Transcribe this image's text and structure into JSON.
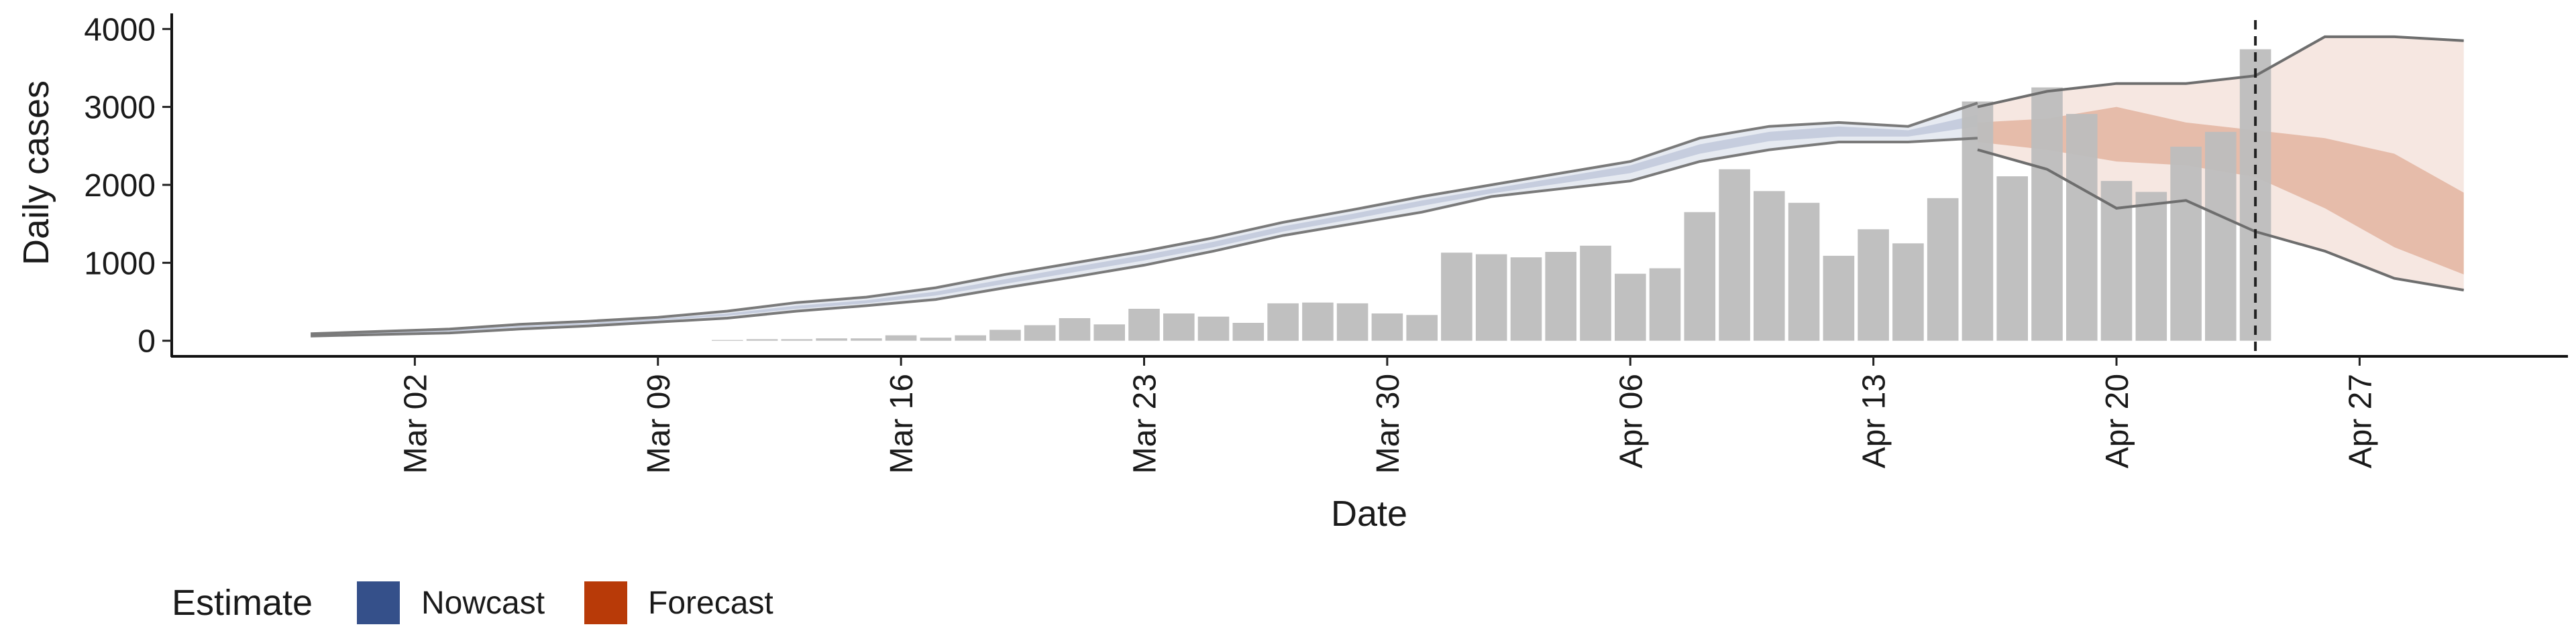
{
  "chart_data": {
    "type": "bar",
    "xlabel": "Date",
    "ylabel": "Daily cases",
    "x_tick_labels": [
      "Mar 02",
      "Mar 09",
      "Mar 16",
      "Mar 23",
      "Mar 30",
      "Apr 06",
      "Apr 13",
      "Apr 20",
      "Apr 27"
    ],
    "x_tick_dates": [
      "2020-03-02",
      "2020-03-09",
      "2020-03-16",
      "2020-03-23",
      "2020-03-30",
      "2020-04-06",
      "2020-04-13",
      "2020-04-20",
      "2020-04-27"
    ],
    "y_ticks": [
      0,
      1000,
      2000,
      3000,
      4000
    ],
    "ylim": [
      -200,
      4200
    ],
    "xlim": [
      "2020-02-24",
      "2020-05-03"
    ],
    "forecast_date": "2020-04-24",
    "grid": false,
    "legend": {
      "title": "Estimate",
      "position": "bottom-left",
      "items": [
        {
          "label": "Nowcast",
          "color": "#35508a"
        },
        {
          "label": "Forecast",
          "color": "#b83a08"
        }
      ]
    },
    "reported_cases": {
      "color": "#bdbdbd",
      "dates": [
        "2020-03-11",
        "2020-03-12",
        "2020-03-13",
        "2020-03-14",
        "2020-03-15",
        "2020-03-16",
        "2020-03-17",
        "2020-03-18",
        "2020-03-19",
        "2020-03-20",
        "2020-03-21",
        "2020-03-22",
        "2020-03-23",
        "2020-03-24",
        "2020-03-25",
        "2020-03-26",
        "2020-03-27",
        "2020-03-28",
        "2020-03-29",
        "2020-03-30",
        "2020-03-31",
        "2020-04-01",
        "2020-04-02",
        "2020-04-03",
        "2020-04-04",
        "2020-04-05",
        "2020-04-06",
        "2020-04-07",
        "2020-04-08",
        "2020-04-09",
        "2020-04-10",
        "2020-04-11",
        "2020-04-12",
        "2020-04-13",
        "2020-04-14",
        "2020-04-15",
        "2020-04-16",
        "2020-04-17",
        "2020-04-18",
        "2020-04-19",
        "2020-04-20",
        "2020-04-21",
        "2020-04-22",
        "2020-04-23",
        "2020-04-24"
      ],
      "values": [
        10,
        20,
        20,
        30,
        30,
        70,
        40,
        70,
        140,
        200,
        290,
        210,
        410,
        350,
        310,
        230,
        480,
        490,
        480,
        350,
        330,
        1130,
        1110,
        1070,
        1140,
        1220,
        860,
        930,
        1650,
        2200,
        1920,
        1770,
        1090,
        1430,
        1250,
        1830,
        3070,
        2110,
        3250,
        2910,
        2050,
        1910,
        2490,
        2680,
        3740
      ]
    },
    "nowcast": {
      "dates": [
        "2020-02-28",
        "2020-03-01",
        "2020-03-03",
        "2020-03-05",
        "2020-03-07",
        "2020-03-09",
        "2020-03-11",
        "2020-03-13",
        "2020-03-15",
        "2020-03-17",
        "2020-03-19",
        "2020-03-21",
        "2020-03-23",
        "2020-03-25",
        "2020-03-27",
        "2020-03-29",
        "2020-03-31",
        "2020-04-02",
        "2020-04-04",
        "2020-04-06",
        "2020-04-08",
        "2020-04-10",
        "2020-04-12",
        "2020-04-14",
        "2020-04-16"
      ],
      "upper_90": [
        90,
        120,
        150,
        210,
        250,
        300,
        380,
        490,
        560,
        680,
        850,
        1000,
        1150,
        1320,
        1520,
        1680,
        1850,
        2000,
        2150,
        2300,
        2600,
        2750,
        2800,
        2750,
        3050
      ],
      "upper_50": [
        80,
        105,
        135,
        190,
        230,
        280,
        350,
        450,
        520,
        630,
        790,
        950,
        1100,
        1270,
        1470,
        1630,
        1800,
        1950,
        2100,
        2250,
        2520,
        2680,
        2750,
        2700,
        2900
      ],
      "lower_50": [
        70,
        95,
        120,
        170,
        210,
        260,
        320,
        410,
        480,
        580,
        730,
        880,
        1030,
        1200,
        1400,
        1560,
        1730,
        1890,
        2020,
        2150,
        2400,
        2560,
        2620,
        2620,
        2750
      ],
      "lower_90": [
        60,
        80,
        100,
        150,
        190,
        240,
        290,
        380,
        450,
        530,
        680,
        820,
        970,
        1150,
        1350,
        1500,
        1650,
        1850,
        1950,
        2050,
        2300,
        2450,
        2550,
        2550,
        2600
      ]
    },
    "forecast": {
      "dates": [
        "2020-04-16",
        "2020-04-18",
        "2020-04-20",
        "2020-04-22",
        "2020-04-24",
        "2020-04-26",
        "2020-04-28",
        "2020-04-30"
      ],
      "upper_90": [
        3000,
        3200,
        3300,
        3300,
        3400,
        3900,
        3900,
        3850
      ],
      "upper_50": [
        2800,
        2850,
        3000,
        2800,
        2700,
        2600,
        2400,
        1900
      ],
      "lower_50": [
        2550,
        2450,
        2300,
        2250,
        2100,
        1700,
        1200,
        850
      ],
      "lower_90": [
        2450,
        2200,
        1700,
        1800,
        1400,
        1150,
        800,
        650
      ]
    }
  }
}
